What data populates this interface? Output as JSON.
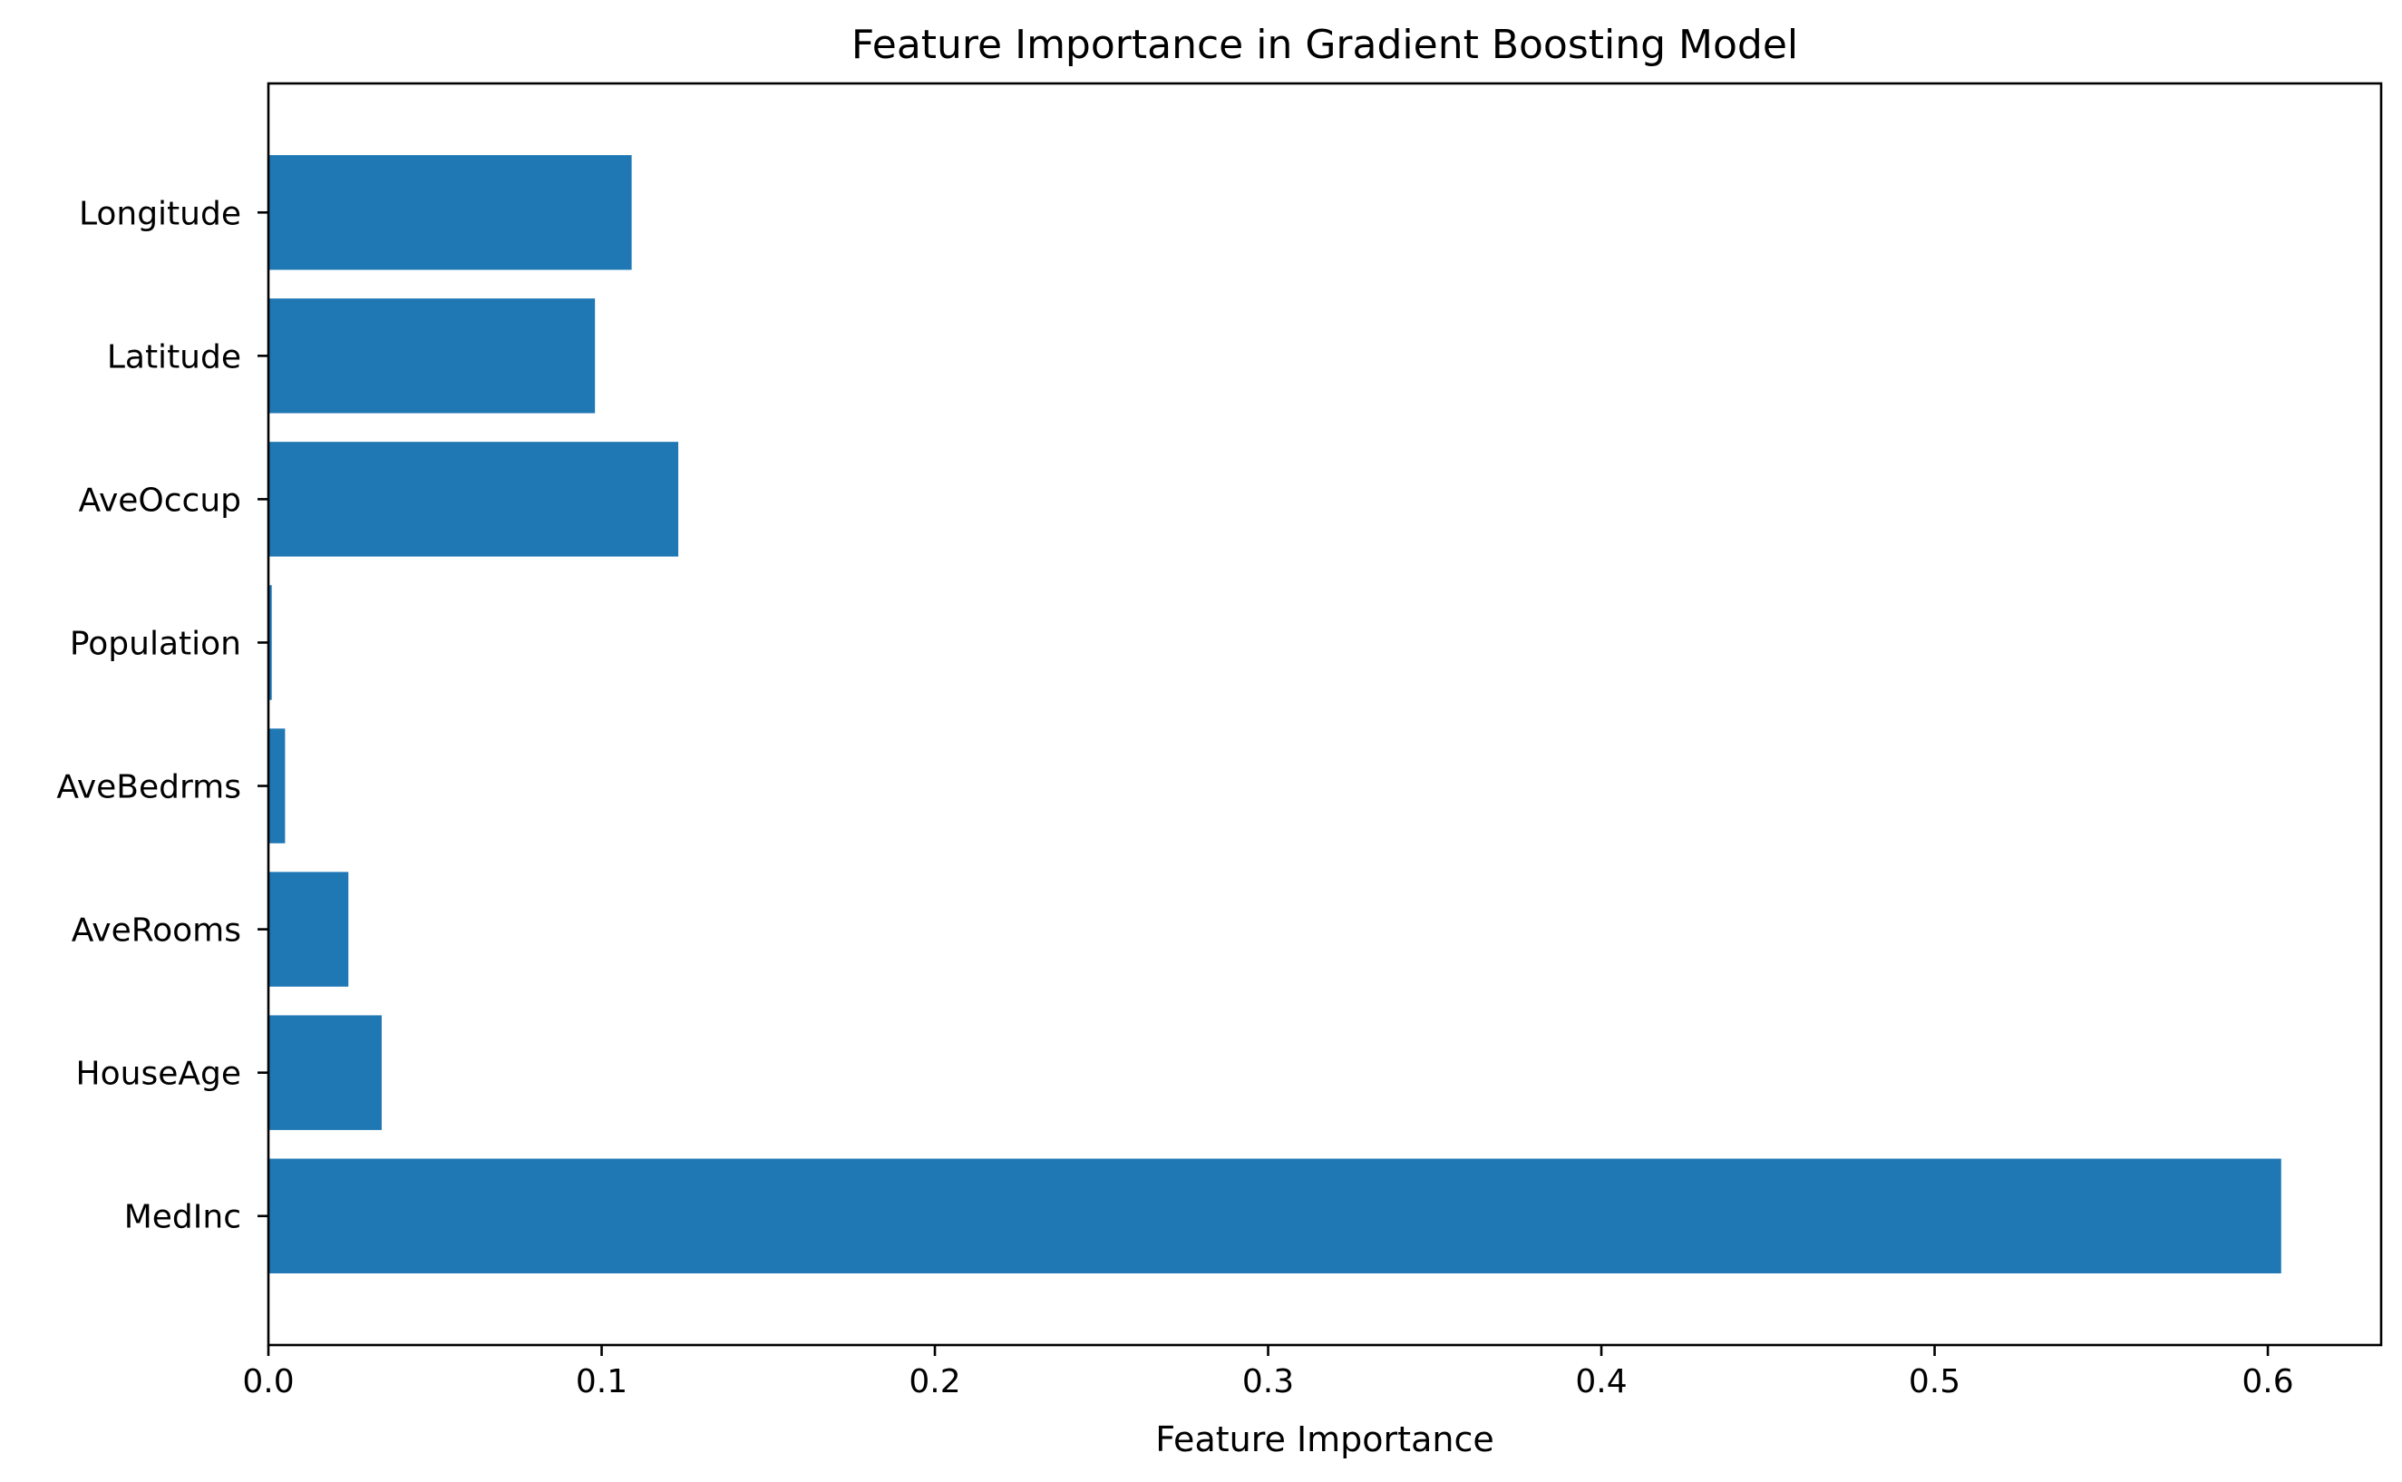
{
  "chart_data": {
    "type": "bar",
    "orientation": "horizontal",
    "title": "Feature Importance in Gradient Boosting Model",
    "xlabel": "Feature Importance",
    "ylabel": "",
    "categories": [
      "MedInc",
      "HouseAge",
      "AveRooms",
      "AveBedrms",
      "Population",
      "AveOccup",
      "Latitude",
      "Longitude"
    ],
    "values": [
      0.604,
      0.034,
      0.024,
      0.005,
      0.001,
      0.123,
      0.098,
      0.109
    ],
    "xlim": [
      0,
      0.634
    ],
    "xticks": [
      0,
      0.1,
      0.2,
      0.3,
      0.4,
      0.5,
      0.6
    ],
    "xtick_labels": [
      "0.0",
      "0.1",
      "0.2",
      "0.3",
      "0.4",
      "0.5",
      "0.6"
    ],
    "grid": false,
    "legend": "none",
    "bar_color": "#1f77b4"
  }
}
